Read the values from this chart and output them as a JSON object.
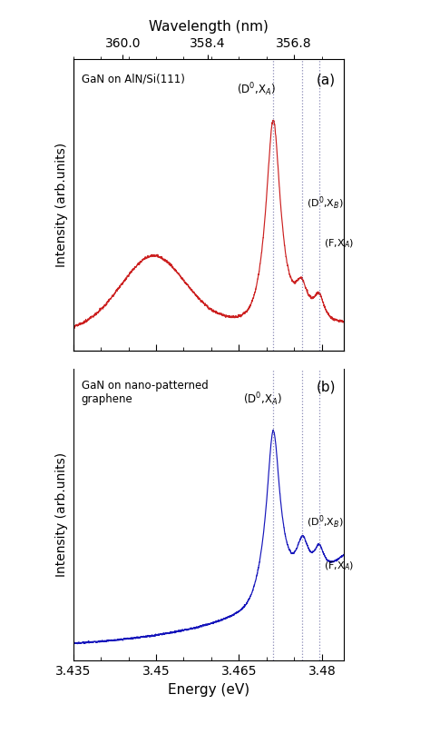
{
  "energy_min": 3.435,
  "energy_max": 3.484,
  "dxa_energy": 3.4712,
  "dxb_energy": 3.4765,
  "fxa_energy": 3.4795,
  "color_a": "#cc2020",
  "color_b": "#1515bb",
  "label_a": "GaN on AlN/Si(111)",
  "label_b": "GaN on nano-patterned\ngraphene",
  "panel_a": "(a)",
  "panel_b": "(b)",
  "xlabel": "Energy (eV)",
  "xlabel_top": "Wavelength (nm)",
  "ylabel": "Intensity (arb.units)",
  "annotation_dxa": "(D$^0$,X$_A$)",
  "annotation_dxb": "(D$^0$,X$_B$)",
  "annotation_fxa": "(F,X$_A$)",
  "wl_ticks_nm": [
    360.0,
    358.4,
    356.8
  ],
  "xticks": [
    3.435,
    3.45,
    3.465,
    3.48
  ],
  "xtick_labels": [
    "3.435",
    "3.45",
    "3.465",
    "3.48"
  ]
}
